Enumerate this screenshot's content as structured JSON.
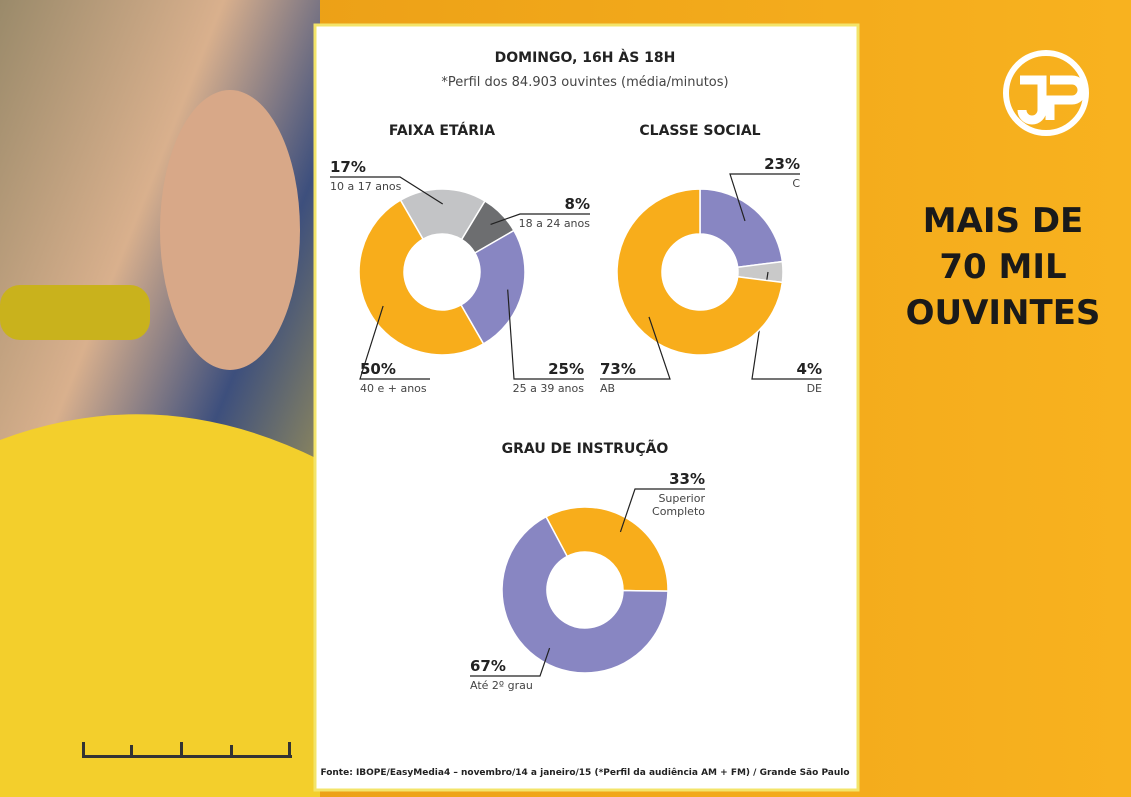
{
  "header": {
    "title": "DOMINGO, 16H ÀS 18H",
    "subtitle": "*Perfil dos 84.903 ouvintes (média/minutos)"
  },
  "source": "Fonte: IBOPE/EasyMedia4 – novembro/14 a janeiro/15 (*Perfil da audiência AM + FM) / Grande São Paulo",
  "side_text": [
    "MAIS DE",
    "70 MIL",
    "OUVINTES"
  ],
  "chart_data": [
    {
      "type": "pie",
      "title": "FAIXA ETÁRIA",
      "categories": [
        "10 a 17 anos",
        "18 a 24 anos",
        "25 a 39 anos",
        "40 e + anos"
      ],
      "values": [
        17,
        8,
        25,
        50
      ],
      "value_labels": [
        "17%",
        "8%",
        "25%",
        "50%"
      ],
      "colors": [
        "#c3c4c6",
        "#6d6e70",
        "#8886c2",
        "#f8ad1b"
      ]
    },
    {
      "type": "pie",
      "title": "CLASSE SOCIAL",
      "categories": [
        "C",
        "DE",
        "AB"
      ],
      "values": [
        23,
        4,
        73
      ],
      "value_labels": [
        "23%",
        "4%",
        "73%"
      ],
      "colors": [
        "#8886c2",
        "#c9c9c9",
        "#f8ad1b"
      ]
    },
    {
      "type": "pie",
      "title": "GRAU DE INSTRUÇÃO",
      "categories": [
        "Superior Completo",
        "Até 2º grau"
      ],
      "values": [
        33,
        67
      ],
      "value_labels": [
        "33%",
        "67%"
      ],
      "colors": [
        "#f8ad1b",
        "#8886c2"
      ]
    }
  ]
}
